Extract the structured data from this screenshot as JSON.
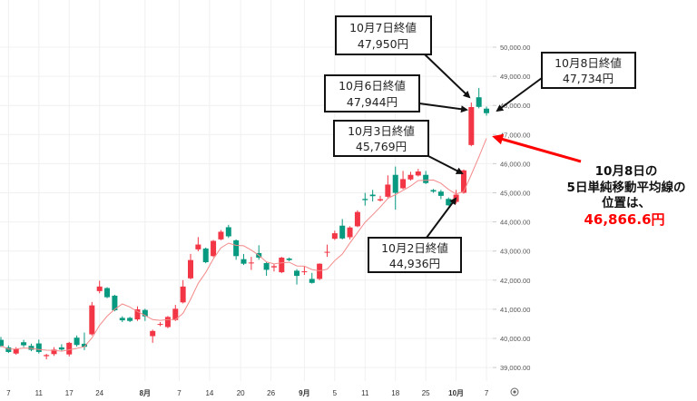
{
  "chart_data": {
    "type": "candlestick",
    "title": "",
    "ylim": [
      38700,
      50400
    ],
    "y_ticks": [
      "50,000.00",
      "49,000.00",
      "48,000.00",
      "47,000.00",
      "46,000.00",
      "45,000.00",
      "44,000.00",
      "43,000.00",
      "42,000.00",
      "41,000.00",
      "40,000.00",
      "39,000.00"
    ],
    "y_tick_values": [
      50000,
      49000,
      48000,
      47000,
      46000,
      45000,
      44000,
      43000,
      42000,
      41000,
      40000,
      39000
    ],
    "x_ticks": [
      {
        "label": "7",
        "candle": 1,
        "bold": false
      },
      {
        "label": "11",
        "candle": 5,
        "bold": false
      },
      {
        "label": "17",
        "candle": 9,
        "bold": false
      },
      {
        "label": "24",
        "candle": 13,
        "bold": false
      },
      {
        "label": "8月",
        "candle": 19,
        "bold": true
      },
      {
        "label": "7",
        "candle": 23.5,
        "bold": false
      },
      {
        "label": "14",
        "candle": 27.5,
        "bold": false
      },
      {
        "label": "20",
        "candle": 31.6,
        "bold": false
      },
      {
        "label": "26",
        "candle": 35.6,
        "bold": false
      },
      {
        "label": "9月",
        "candle": 40,
        "bold": true
      },
      {
        "label": "5",
        "candle": 44,
        "bold": false
      },
      {
        "label": "11",
        "candle": 48,
        "bold": false
      },
      {
        "label": "18",
        "candle": 52,
        "bold": false
      },
      {
        "label": "25",
        "candle": 56,
        "bold": false
      },
      {
        "label": "10月",
        "candle": 60,
        "bold": true
      },
      {
        "label": "7",
        "candle": 64,
        "bold": false
      }
    ],
    "ohlc_fields": [
      "open",
      "high",
      "low",
      "close"
    ],
    "ohlc": [
      [
        39950,
        40050,
        39700,
        39740
      ],
      [
        39691,
        39760,
        39500,
        39534
      ],
      [
        39480,
        39700,
        39440,
        39640
      ],
      [
        39868,
        39950,
        39700,
        39764
      ],
      [
        39743,
        39820,
        39560,
        39607
      ],
      [
        39827,
        39960,
        39480,
        39534
      ],
      [
        39390,
        39470,
        39280,
        39430
      ],
      [
        39461,
        39700,
        39400,
        39617
      ],
      [
        39691,
        39800,
        39580,
        39618
      ],
      [
        39450,
        39880,
        39380,
        39848
      ],
      [
        40025,
        40100,
        39720,
        39774
      ],
      [
        39816,
        40200,
        39600,
        39712
      ],
      [
        40140,
        41250,
        40100,
        41133
      ],
      [
        41624,
        41980,
        41550,
        41781
      ],
      [
        41728,
        41760,
        41380,
        41415
      ],
      [
        41467,
        41500,
        40930,
        40966
      ],
      [
        40704,
        40760,
        40560,
        40621
      ],
      [
        40704,
        40740,
        40560,
        40600
      ],
      [
        40652,
        41100,
        40600,
        40997
      ],
      [
        40976,
        41020,
        40600,
        40757
      ],
      [
        40077,
        40300,
        39850,
        40255
      ],
      [
        40475,
        40560,
        40420,
        40495
      ],
      [
        40391,
        40770,
        40350,
        40736
      ],
      [
        40631,
        41150,
        40600,
        41018
      ],
      [
        41237,
        42000,
        41200,
        41781
      ],
      [
        42063,
        42900,
        42030,
        42690
      ],
      [
        43056,
        43480,
        42990,
        43223
      ],
      [
        43087,
        43120,
        42580,
        42617
      ],
      [
        42826,
        43380,
        42790,
        43348
      ],
      [
        43400,
        43720,
        43370,
        43662
      ],
      [
        43818,
        43900,
        43450,
        43505
      ],
      [
        43369,
        43400,
        42700,
        42826
      ],
      [
        42721,
        42900,
        42520,
        42564
      ],
      [
        42585,
        42800,
        42350,
        42606
      ],
      [
        42930,
        43200,
        42700,
        42774
      ],
      [
        42585,
        42620,
        42150,
        42356
      ],
      [
        42439,
        42560,
        42300,
        42481
      ],
      [
        42272,
        42800,
        42240,
        42774
      ],
      [
        42742,
        42780,
        42650,
        42690
      ],
      [
        42324,
        42380,
        41850,
        42147
      ],
      [
        42282,
        42480,
        42180,
        42303
      ],
      [
        42042,
        42250,
        41880,
        41906
      ],
      [
        42042,
        42580,
        42000,
        42564
      ],
      [
        42941,
        43220,
        42800,
        42972
      ],
      [
        43421,
        43700,
        43380,
        43610
      ],
      [
        43871,
        44100,
        43400,
        43432
      ],
      [
        43474,
        43850,
        43400,
        43808
      ],
      [
        43850,
        44400,
        43820,
        44341
      ],
      [
        44790,
        45000,
        44560,
        44749
      ],
      [
        44937,
        45100,
        44700,
        44884
      ],
      [
        44738,
        44900,
        44700,
        44780
      ],
      [
        44864,
        45600,
        44820,
        45282
      ],
      [
        45616,
        45900,
        44420,
        45000
      ],
      [
        45156,
        45750,
        45120,
        45470
      ],
      [
        45459,
        45720,
        45420,
        45616
      ],
      [
        45595,
        45820,
        45560,
        45731
      ],
      [
        45616,
        45750,
        45300,
        45334
      ],
      [
        45094,
        45130,
        45000,
        45041
      ],
      [
        45041,
        45100,
        44780,
        44895
      ],
      [
        44790,
        44840,
        44550,
        44571
      ],
      [
        44686,
        45100,
        44620,
        44936
      ],
      [
        45000,
        45800,
        44970,
        45769
      ],
      [
        46640,
        48100,
        46600,
        47944
      ],
      [
        48280,
        48600,
        47900,
        47950
      ],
      [
        47890,
        47960,
        47650,
        47734
      ]
    ],
    "up_color": "#f23645",
    "down_color": "#089981",
    "sma": {
      "period": 5,
      "color": "#f48a8a"
    },
    "grid": true
  },
  "annotations": {
    "oct7": {
      "line1": "10月7日終値",
      "line2": "47,950円"
    },
    "oct6": {
      "line1": "10月6日終値",
      "line2": "47,944円"
    },
    "oct8": {
      "line1": "10月8日終値",
      "line2": "47,734円"
    },
    "oct3": {
      "line1": "10月3日終値",
      "line2": "45,769円"
    },
    "oct2": {
      "line1": "10月2日終値",
      "line2": "44,936円"
    },
    "sma_note": {
      "line1": "10月8日の",
      "line2": "5日単純移動平均線の",
      "line3": "位置は、",
      "value": "46,866.6円",
      "value_color": "#ff0000"
    }
  }
}
